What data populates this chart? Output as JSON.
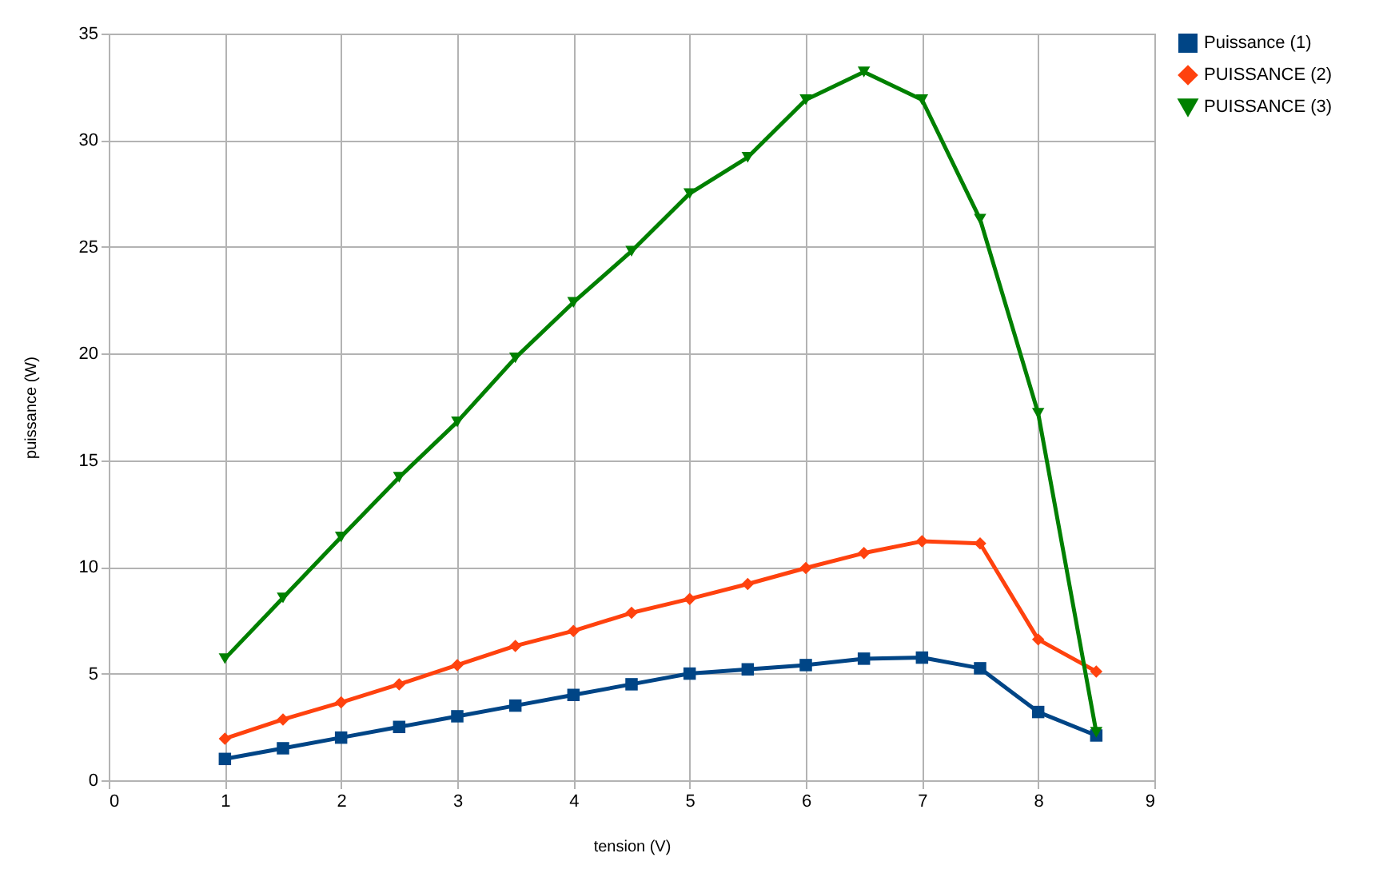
{
  "chart_data": {
    "type": "line",
    "xlabel": "tension (V)",
    "ylabel": "puissance (W)",
    "x": [
      1,
      1.5,
      2,
      2.5,
      3,
      3.5,
      4,
      4.5,
      5,
      5.5,
      6,
      6.5,
      7,
      7.5,
      8,
      8.5
    ],
    "series": [
      {
        "name": "Puissance (1)",
        "color": "#004586",
        "marker": "square",
        "values": [
          1.0,
          1.5,
          2.0,
          2.5,
          3.0,
          3.5,
          4.0,
          4.5,
          5.0,
          5.2,
          5.4,
          5.7,
          5.75,
          5.25,
          3.2,
          2.1
        ]
      },
      {
        "name": "PUISSANCE (2)",
        "color": "#ff420e",
        "marker": "diamond",
        "values": [
          1.95,
          2.85,
          3.65,
          4.5,
          5.4,
          6.3,
          7.0,
          7.85,
          8.5,
          9.2,
          9.95,
          10.65,
          11.2,
          11.1,
          6.6,
          5.1
        ]
      },
      {
        "name": "PUISSANCE (3)",
        "color": "#008000",
        "marker": "triangle-down",
        "values": [
          5.7,
          8.55,
          11.4,
          14.2,
          16.8,
          19.8,
          22.4,
          24.8,
          27.5,
          29.2,
          31.9,
          33.2,
          31.9,
          26.3,
          17.2,
          2.25
        ]
      }
    ],
    "xlim": [
      0,
      9
    ],
    "xticks": [
      0,
      1,
      2,
      3,
      4,
      5,
      6,
      7,
      8,
      9
    ],
    "ylim": [
      0,
      35
    ],
    "yticks": [
      0,
      5,
      10,
      15,
      20,
      25,
      30,
      35
    ],
    "grid": true,
    "legend": "right",
    "line_style": "solid"
  }
}
